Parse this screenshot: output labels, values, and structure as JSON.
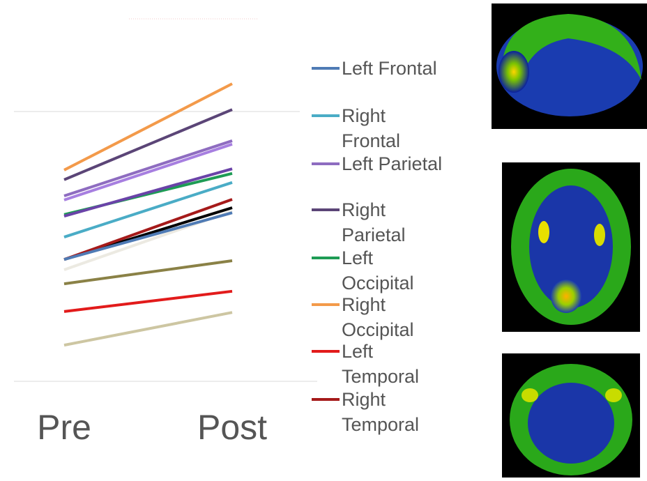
{
  "chart_data": {
    "type": "slope",
    "categories": [
      "Pre",
      "Post"
    ],
    "ylim": [
      0,
      100
    ],
    "series": [
      {
        "name": "Left Frontal",
        "color": "#4f7bb5",
        "values": [
          39.1,
          54.1
        ]
      },
      {
        "name": "Right Frontal",
        "color": "#4aacc6",
        "values": [
          46.3,
          63.8
        ]
      },
      {
        "name": "Left Parietal",
        "color": "#8e6cc0",
        "values": [
          59.5,
          77.2
        ]
      },
      {
        "name": "Right Parietal",
        "color": "#5b4577",
        "values": [
          64.7,
          87.2
        ]
      },
      {
        "name": "Left Occipital",
        "color": "#1e9c55",
        "values": [
          53.5,
          66.7
        ]
      },
      {
        "name": "Right Occipital",
        "color": "#f39a4a",
        "values": [
          67.8,
          95.5
        ]
      },
      {
        "name": "Left Temporal",
        "color": "#e21b1b",
        "values": [
          22.4,
          28.9
        ]
      },
      {
        "name": "Right Temporal",
        "color": "#a51a1a",
        "values": [
          39.1,
          58.4
        ]
      },
      {
        "color": "#6a43a8",
        "values": [
          53.0,
          68.2
        ]
      },
      {
        "color": "#a77fe0",
        "values": [
          58.2,
          76.1
        ]
      },
      {
        "color": "#eceae2",
        "values": [
          35.8,
          54.6
        ]
      },
      {
        "color": "#000000",
        "values": [
          39.1,
          55.7
        ]
      },
      {
        "color": "#8a8146",
        "values": [
          31.3,
          38.7
        ]
      },
      {
        "color": "#cdc6a2",
        "values": [
          11.6,
          22.1
        ]
      }
    ]
  }
}
